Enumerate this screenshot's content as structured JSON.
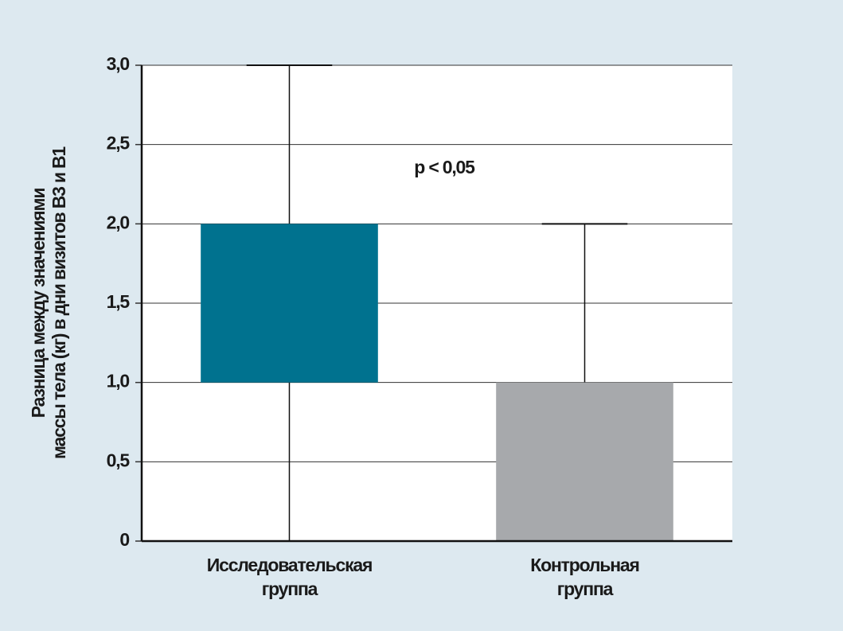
{
  "chart_data": {
    "type": "box",
    "ylabel": [
      "Разница между значениями",
      "массы тела (кг) в дни визитов В3 и В1"
    ],
    "annotation": "p < 0,05",
    "categories": [
      "Исследовательская\nгруппа",
      "Контрольная\nгруппа"
    ],
    "colors": [
      "#00728f",
      "#a7a9ac"
    ],
    "boxes": [
      {
        "min": 0,
        "q1": 1.0,
        "q3": 2.0,
        "max": 3.0
      },
      {
        "min": 0,
        "q1": 0,
        "q3": 1.0,
        "max": 2.0
      }
    ],
    "ylim": [
      0,
      3.0
    ],
    "yticks": [
      0,
      {
        "value": 0.5,
        "label": "0,5"
      },
      {
        "value": 1.0,
        "label": "1,0"
      },
      {
        "value": 1.5,
        "label": "1,5"
      },
      {
        "value": 2.0,
        "label": "2,0"
      },
      {
        "value": 2.5,
        "label": "2,5"
      },
      {
        "value": 3.0,
        "label": "3,0"
      }
    ],
    "grid": true
  }
}
